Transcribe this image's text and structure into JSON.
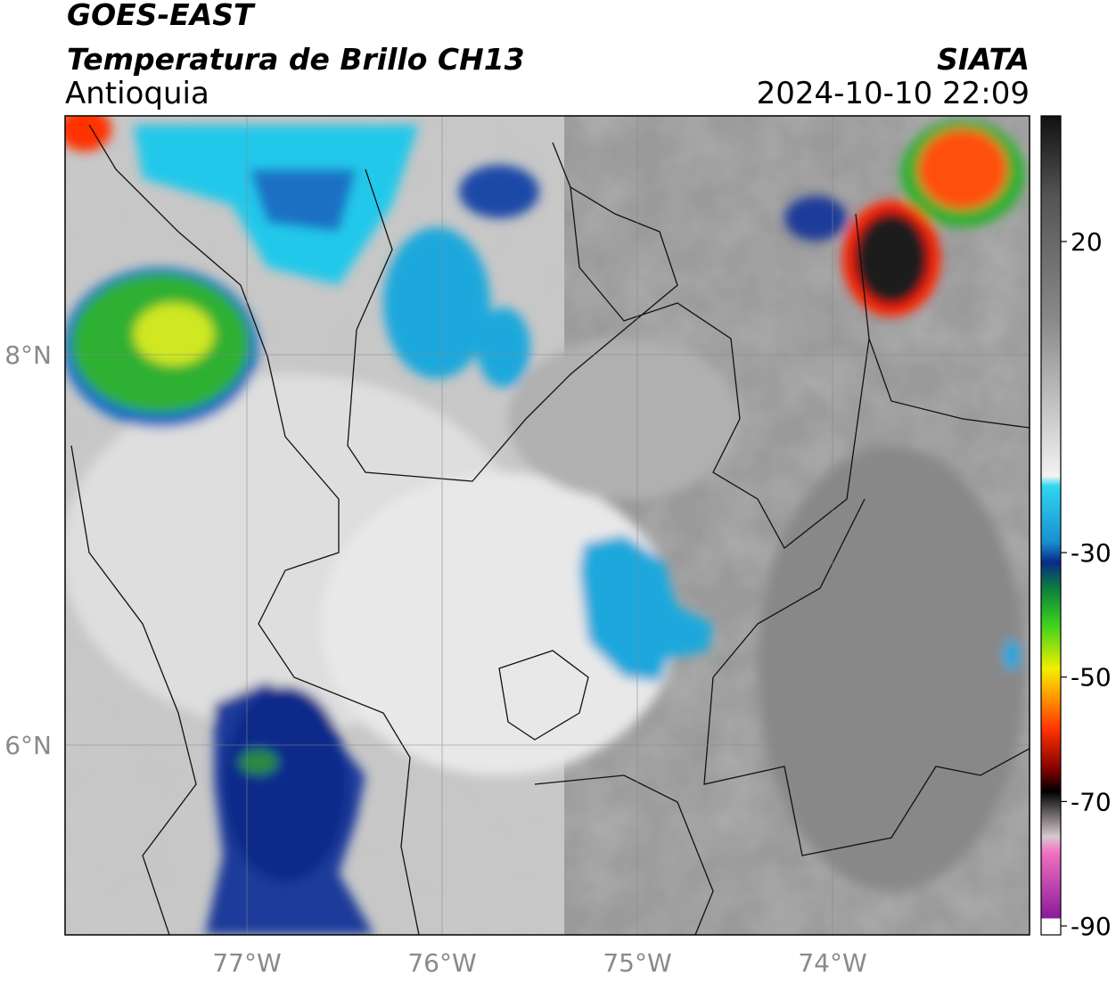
{
  "header": {
    "satellite": "GOES-EAST",
    "product": "Temperatura de Brillo CH13",
    "region": "Antioquia",
    "source": "SIATA",
    "timestamp": "2024-10-10 22:09"
  },
  "map": {
    "lat_labels": [
      "8°N",
      "6°N"
    ],
    "lon_labels": [
      "77°W",
      "76°W",
      "75°W",
      "74°W"
    ]
  },
  "colorbar": {
    "ticks": [
      20,
      -30,
      -50,
      -70,
      -90
    ]
  }
}
